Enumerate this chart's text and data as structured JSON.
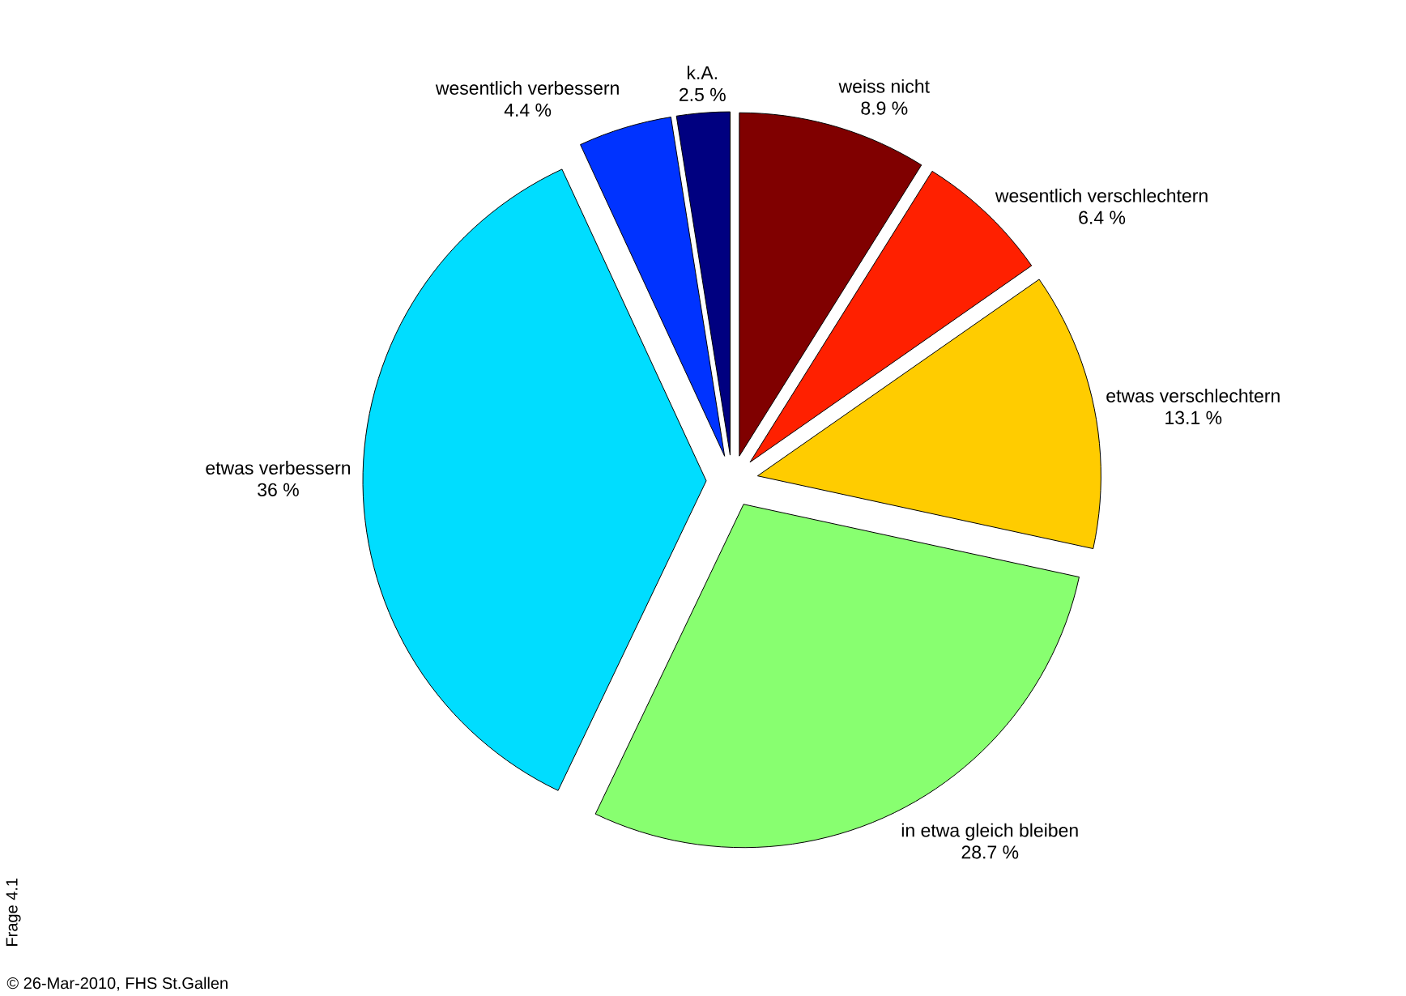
{
  "chart_data": {
    "type": "pie",
    "categories": [
      "weiss nicht",
      "wesentlich verschlechtern",
      "etwas verschlechtern",
      "in etwa gleich bleiben",
      "etwas verbessern",
      "wesentlich verbessern",
      "k.A."
    ],
    "values": [
      8.9,
      6.4,
      13.1,
      28.7,
      36,
      4.4,
      2.5
    ],
    "value_labels": [
      "8.9 %",
      "6.4 %",
      "13.1 %",
      "28.7 %",
      "36 %",
      "4.4 %",
      "2.5 %"
    ],
    "colors": [
      "#800000",
      "#ff2000",
      "#ffcc00",
      "#88ff70",
      "#00ddff",
      "#0033ff",
      "#000080"
    ],
    "annotations": [
      "Frage 4.1",
      "© 26-Mar-2010, FHS St.Gallen"
    ]
  }
}
